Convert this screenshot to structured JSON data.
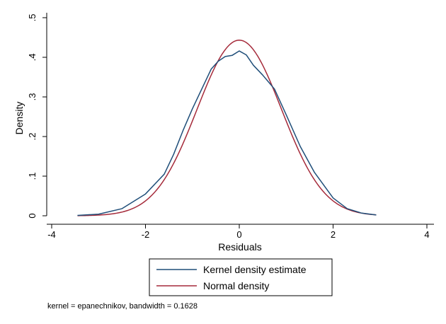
{
  "chart_data": {
    "type": "line",
    "xlabel": "Residuals",
    "ylabel": "Density",
    "xlim": [
      -4,
      4
    ],
    "ylim": [
      0,
      0.5
    ],
    "x_ticks": [
      "-4",
      "-2",
      "0",
      "2",
      "4"
    ],
    "y_ticks": [
      "0",
      ".1",
      ".2",
      ".3",
      ".4",
      ".5"
    ],
    "grid": false,
    "legend_position": "bottom",
    "note": "kernel = epanechnikov, bandwidth = 0.1628",
    "series": [
      {
        "name": "Kernel density estimate",
        "color": "#1f4e79",
        "x": [
          -3.45,
          -3.0,
          -2.5,
          -2.0,
          -1.6,
          -1.4,
          -1.2,
          -1.0,
          -0.8,
          -0.6,
          -0.45,
          -0.3,
          -0.15,
          0.0,
          0.15,
          0.3,
          0.5,
          0.75,
          1.0,
          1.3,
          1.6,
          2.0,
          2.3,
          2.6,
          2.92
        ],
        "y": [
          0.001,
          0.004,
          0.018,
          0.055,
          0.105,
          0.155,
          0.215,
          0.27,
          0.32,
          0.37,
          0.39,
          0.402,
          0.405,
          0.416,
          0.406,
          0.38,
          0.355,
          0.32,
          0.255,
          0.175,
          0.11,
          0.045,
          0.018,
          0.007,
          0.002
        ]
      },
      {
        "name": "Normal density",
        "color": "#a52a3a",
        "mean": 0.0,
        "sd": 0.9,
        "x_range": [
          -3.45,
          2.92
        ]
      }
    ]
  }
}
